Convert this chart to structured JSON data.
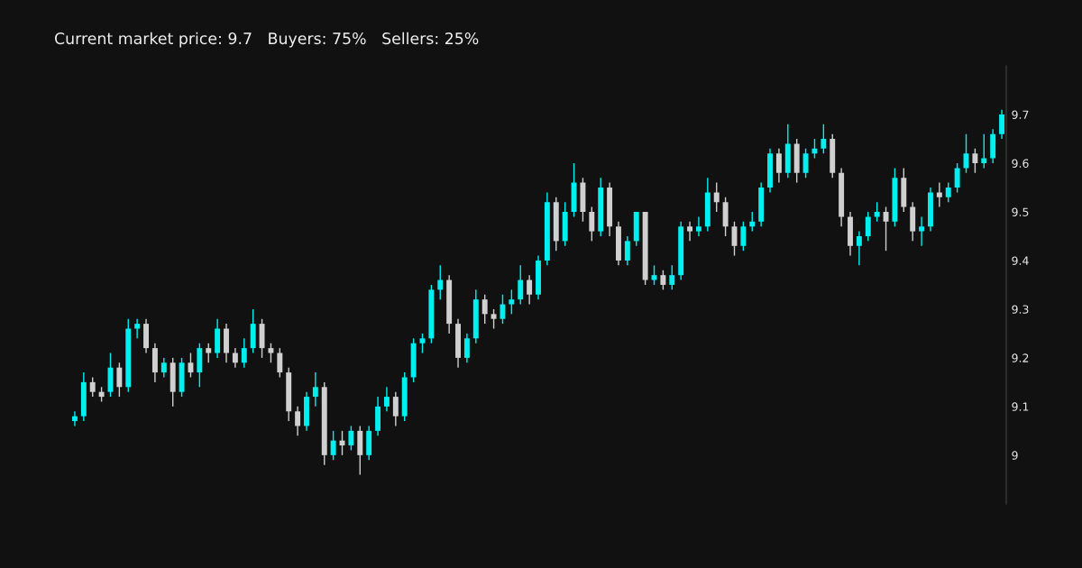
{
  "chart_data": {
    "type": "candlestick",
    "title": "Current market price: 9.7   Buyers: 75%   Sellers: 25%",
    "categories": [
      null,
      null,
      null,
      null,
      null,
      null,
      null,
      null,
      null,
      null,
      null,
      null,
      null,
      null,
      null,
      null,
      null,
      null,
      null,
      null,
      null,
      null,
      null,
      null,
      null,
      null,
      null,
      null,
      null,
      null,
      null,
      null,
      null,
      null,
      null,
      null,
      null,
      null,
      null,
      null,
      null,
      null,
      null,
      null,
      null,
      null,
      null,
      null,
      null,
      null,
      null,
      null,
      null,
      null,
      null,
      null,
      null,
      null,
      null,
      null,
      null,
      null,
      null,
      null,
      null,
      null,
      null,
      null,
      null,
      null,
      null,
      null,
      null,
      null,
      null,
      null,
      null,
      null,
      null,
      null,
      null,
      null,
      null,
      null,
      null,
      null,
      null,
      null,
      null,
      null,
      null,
      null,
      null,
      null,
      null,
      null,
      null,
      null,
      null,
      null,
      null,
      null,
      null,
      null,
      null
    ],
    "ohlc": [
      [
        9.07,
        9.09,
        9.06,
        9.08
      ],
      [
        9.08,
        9.17,
        9.07,
        9.15
      ],
      [
        9.15,
        9.16,
        9.12,
        9.13
      ],
      [
        9.13,
        9.14,
        9.11,
        9.12
      ],
      [
        9.13,
        9.21,
        9.12,
        9.18
      ],
      [
        9.18,
        9.19,
        9.12,
        9.14
      ],
      [
        9.14,
        9.28,
        9.13,
        9.26
      ],
      [
        9.26,
        9.28,
        9.24,
        9.27
      ],
      [
        9.27,
        9.28,
        9.21,
        9.22
      ],
      [
        9.22,
        9.23,
        9.15,
        9.17
      ],
      [
        9.17,
        9.2,
        9.16,
        9.19
      ],
      [
        9.19,
        9.2,
        9.1,
        9.13
      ],
      [
        9.13,
        9.2,
        9.12,
        9.19
      ],
      [
        9.19,
        9.21,
        9.16,
        9.17
      ],
      [
        9.17,
        9.23,
        9.14,
        9.22
      ],
      [
        9.22,
        9.23,
        9.19,
        9.21
      ],
      [
        9.21,
        9.28,
        9.2,
        9.26
      ],
      [
        9.26,
        9.27,
        9.19,
        9.21
      ],
      [
        9.21,
        9.22,
        9.18,
        9.19
      ],
      [
        9.19,
        9.24,
        9.18,
        9.22
      ],
      [
        9.22,
        9.3,
        9.21,
        9.27
      ],
      [
        9.27,
        9.28,
        9.2,
        9.22
      ],
      [
        9.22,
        9.23,
        9.19,
        9.21
      ],
      [
        9.21,
        9.22,
        9.16,
        9.17
      ],
      [
        9.17,
        9.18,
        9.07,
        9.09
      ],
      [
        9.09,
        9.1,
        9.04,
        9.06
      ],
      [
        9.06,
        9.13,
        9.05,
        9.12
      ],
      [
        9.12,
        9.17,
        9.1,
        9.14
      ],
      [
        9.14,
        9.15,
        8.98,
        9.0
      ],
      [
        9.0,
        9.05,
        8.99,
        9.03
      ],
      [
        9.03,
        9.05,
        9.0,
        9.02
      ],
      [
        9.02,
        9.06,
        9.01,
        9.05
      ],
      [
        9.05,
        9.06,
        8.96,
        9.0
      ],
      [
        9.0,
        9.06,
        8.99,
        9.05
      ],
      [
        9.05,
        9.12,
        9.04,
        9.1
      ],
      [
        9.1,
        9.14,
        9.09,
        9.12
      ],
      [
        9.12,
        9.13,
        9.06,
        9.08
      ],
      [
        9.08,
        9.17,
        9.07,
        9.16
      ],
      [
        9.16,
        9.24,
        9.15,
        9.23
      ],
      [
        9.23,
        9.25,
        9.21,
        9.24
      ],
      [
        9.24,
        9.35,
        9.23,
        9.34
      ],
      [
        9.34,
        9.39,
        9.32,
        9.36
      ],
      [
        9.36,
        9.37,
        9.25,
        9.27
      ],
      [
        9.27,
        9.28,
        9.18,
        9.2
      ],
      [
        9.2,
        9.25,
        9.19,
        9.24
      ],
      [
        9.24,
        9.34,
        9.23,
        9.32
      ],
      [
        9.32,
        9.33,
        9.27,
        9.29
      ],
      [
        9.29,
        9.3,
        9.26,
        9.28
      ],
      [
        9.28,
        9.33,
        9.27,
        9.31
      ],
      [
        9.31,
        9.34,
        9.29,
        9.32
      ],
      [
        9.32,
        9.39,
        9.31,
        9.36
      ],
      [
        9.36,
        9.37,
        9.31,
        9.33
      ],
      [
        9.33,
        9.41,
        9.32,
        9.4
      ],
      [
        9.4,
        9.54,
        9.39,
        9.52
      ],
      [
        9.52,
        9.53,
        9.42,
        9.44
      ],
      [
        9.44,
        9.52,
        9.43,
        9.5
      ],
      [
        9.5,
        9.6,
        9.49,
        9.56
      ],
      [
        9.56,
        9.57,
        9.48,
        9.5
      ],
      [
        9.5,
        9.51,
        9.44,
        9.46
      ],
      [
        9.46,
        9.57,
        9.45,
        9.55
      ],
      [
        9.55,
        9.56,
        9.45,
        9.47
      ],
      [
        9.47,
        9.48,
        9.39,
        9.4
      ],
      [
        9.4,
        9.45,
        9.39,
        9.44
      ],
      [
        9.44,
        9.5,
        9.43,
        9.5
      ],
      [
        9.5,
        9.5,
        9.35,
        9.36
      ],
      [
        9.36,
        9.39,
        9.35,
        9.37
      ],
      [
        9.37,
        9.38,
        9.34,
        9.35
      ],
      [
        9.35,
        9.39,
        9.34,
        9.37
      ],
      [
        9.37,
        9.48,
        9.36,
        9.47
      ],
      [
        9.47,
        9.48,
        9.44,
        9.46
      ],
      [
        9.46,
        9.49,
        9.45,
        9.47
      ],
      [
        9.47,
        9.57,
        9.46,
        9.54
      ],
      [
        9.54,
        9.56,
        9.5,
        9.52
      ],
      [
        9.52,
        9.53,
        9.45,
        9.47
      ],
      [
        9.47,
        9.48,
        9.41,
        9.43
      ],
      [
        9.43,
        9.48,
        9.42,
        9.47
      ],
      [
        9.47,
        9.5,
        9.46,
        9.48
      ],
      [
        9.48,
        9.56,
        9.47,
        9.55
      ],
      [
        9.55,
        9.63,
        9.54,
        9.62
      ],
      [
        9.62,
        9.63,
        9.56,
        9.58
      ],
      [
        9.58,
        9.68,
        9.57,
        9.64
      ],
      [
        9.64,
        9.65,
        9.56,
        9.58
      ],
      [
        9.58,
        9.63,
        9.57,
        9.62
      ],
      [
        9.62,
        9.65,
        9.61,
        9.63
      ],
      [
        9.63,
        9.68,
        9.62,
        9.65
      ],
      [
        9.65,
        9.66,
        9.57,
        9.58
      ],
      [
        9.58,
        9.59,
        9.47,
        9.49
      ],
      [
        9.49,
        9.5,
        9.41,
        9.43
      ],
      [
        9.43,
        9.46,
        9.39,
        9.45
      ],
      [
        9.45,
        9.5,
        9.44,
        9.49
      ],
      [
        9.49,
        9.52,
        9.48,
        9.5
      ],
      [
        9.5,
        9.51,
        9.42,
        9.48
      ],
      [
        9.48,
        9.59,
        9.47,
        9.57
      ],
      [
        9.57,
        9.59,
        9.5,
        9.51
      ],
      [
        9.51,
        9.52,
        9.44,
        9.46
      ],
      [
        9.46,
        9.49,
        9.43,
        9.47
      ],
      [
        9.47,
        9.55,
        9.46,
        9.54
      ],
      [
        9.54,
        9.56,
        9.51,
        9.53
      ],
      [
        9.53,
        9.56,
        9.52,
        9.55
      ],
      [
        9.55,
        9.6,
        9.54,
        9.59
      ],
      [
        9.59,
        9.66,
        9.58,
        9.62
      ],
      [
        9.62,
        9.63,
        9.58,
        9.6
      ],
      [
        9.6,
        9.66,
        9.59,
        9.61
      ],
      [
        9.61,
        9.67,
        9.6,
        9.66
      ],
      [
        9.66,
        9.71,
        9.65,
        9.7
      ]
    ],
    "colors": [
      "#00f0f0",
      "#00f0f0",
      "#d0d0d0",
      "#d0d0d0",
      "#00f0f0",
      "#d0d0d0",
      "#00f0f0",
      "#00f0f0",
      "#d0d0d0",
      "#d0d0d0",
      "#00f0f0",
      "#d0d0d0",
      "#00f0f0",
      "#d0d0d0",
      "#00f0f0",
      "#d0d0d0",
      "#00f0f0",
      "#d0d0d0",
      "#d0d0d0",
      "#00f0f0",
      "#00f0f0",
      "#d0d0d0",
      "#d0d0d0",
      "#d0d0d0",
      "#d0d0d0",
      "#d0d0d0",
      "#00f0f0",
      "#00f0f0",
      "#d0d0d0",
      "#00f0f0",
      "#d0d0d0",
      "#00f0f0",
      "#d0d0d0",
      "#00f0f0",
      "#00f0f0",
      "#00f0f0",
      "#d0d0d0",
      "#00f0f0",
      "#00f0f0",
      "#00f0f0",
      "#00f0f0",
      "#00f0f0",
      "#d0d0d0",
      "#d0d0d0",
      "#00f0f0",
      "#00f0f0",
      "#d0d0d0",
      "#d0d0d0",
      "#00f0f0",
      "#00f0f0",
      "#00f0f0",
      "#d0d0d0",
      "#00f0f0",
      "#00f0f0",
      "#d0d0d0",
      "#00f0f0",
      "#00f0f0",
      "#d0d0d0",
      "#d0d0d0",
      "#00f0f0",
      "#d0d0d0",
      "#d0d0d0",
      "#00f0f0",
      "#00f0f0",
      "#d0d0d0",
      "#00f0f0",
      "#d0d0d0",
      "#00f0f0",
      "#00f0f0",
      "#d0d0d0",
      "#00f0f0",
      "#00f0f0",
      "#d0d0d0",
      "#d0d0d0",
      "#d0d0d0",
      "#00f0f0",
      "#00f0f0",
      "#00f0f0",
      "#00f0f0",
      "#d0d0d0",
      "#00f0f0",
      "#d0d0d0",
      "#00f0f0",
      "#00f0f0",
      "#00f0f0",
      "#d0d0d0",
      "#d0d0d0",
      "#d0d0d0",
      "#00f0f0",
      "#00f0f0",
      "#00f0f0",
      "#d0d0d0",
      "#00f0f0",
      "#d0d0d0",
      "#d0d0d0",
      "#00f0f0",
      "#00f0f0",
      "#d0d0d0",
      "#00f0f0",
      "#00f0f0",
      "#00f0f0",
      "#d0d0d0",
      "#00f0f0",
      "#00f0f0",
      "#00f0f0"
    ],
    "ylim": [
      8.9,
      9.8
    ],
    "yticks": [
      9,
      9.1,
      9.2,
      9.3,
      9.4,
      9.5,
      9.6,
      9.7
    ],
    "tick_labels": "y",
    "grid": false
  }
}
